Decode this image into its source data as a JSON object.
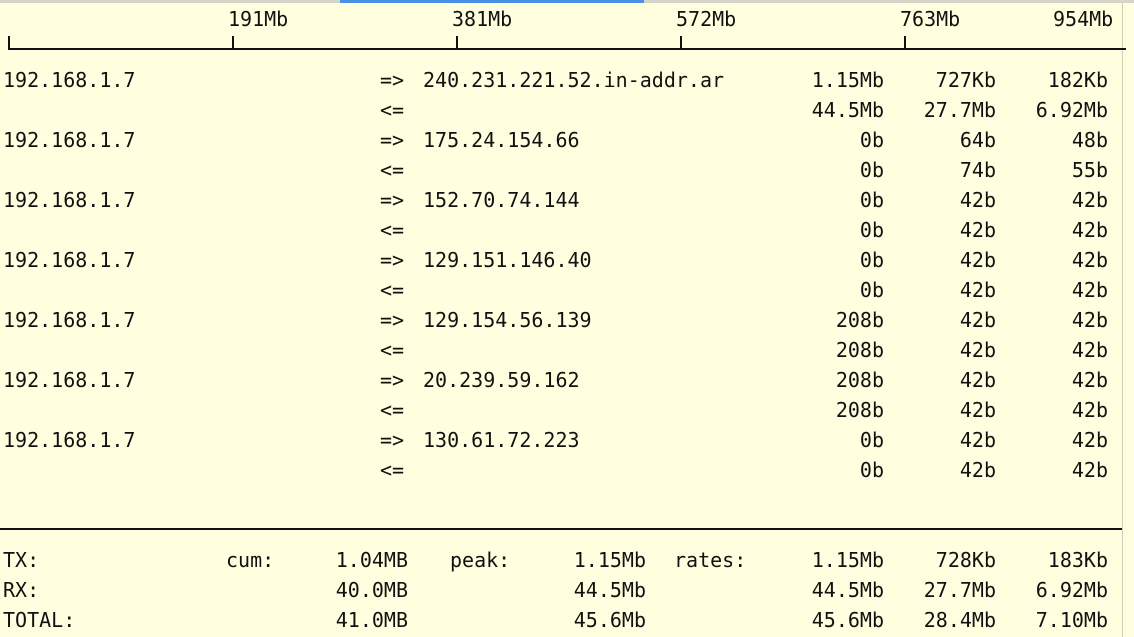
{
  "scale": {
    "labels": [
      "191Mb",
      "381Mb",
      "572Mb",
      "763Mb",
      "954Mb"
    ]
  },
  "connections": [
    {
      "source": "192.168.1.7",
      "dest": "240.231.221.52.in-addr.ar",
      "tx": {
        "dir": "=>",
        "r2": "1.15Mb",
        "r10": "727Kb",
        "r40": "182Kb"
      },
      "rx": {
        "dir": "<=",
        "r2": "44.5Mb",
        "r10": "27.7Mb",
        "r40": "6.92Mb"
      }
    },
    {
      "source": "192.168.1.7",
      "dest": "175.24.154.66",
      "tx": {
        "dir": "=>",
        "r2": "0b",
        "r10": "64b",
        "r40": "48b"
      },
      "rx": {
        "dir": "<=",
        "r2": "0b",
        "r10": "74b",
        "r40": "55b"
      }
    },
    {
      "source": "192.168.1.7",
      "dest": "152.70.74.144",
      "tx": {
        "dir": "=>",
        "r2": "0b",
        "r10": "42b",
        "r40": "42b"
      },
      "rx": {
        "dir": "<=",
        "r2": "0b",
        "r10": "42b",
        "r40": "42b"
      }
    },
    {
      "source": "192.168.1.7",
      "dest": "129.151.146.40",
      "tx": {
        "dir": "=>",
        "r2": "0b",
        "r10": "42b",
        "r40": "42b"
      },
      "rx": {
        "dir": "<=",
        "r2": "0b",
        "r10": "42b",
        "r40": "42b"
      }
    },
    {
      "source": "192.168.1.7",
      "dest": "129.154.56.139",
      "tx": {
        "dir": "=>",
        "r2": "208b",
        "r10": "42b",
        "r40": "42b"
      },
      "rx": {
        "dir": "<=",
        "r2": "208b",
        "r10": "42b",
        "r40": "42b"
      }
    },
    {
      "source": "192.168.1.7",
      "dest": "20.239.59.162",
      "tx": {
        "dir": "=>",
        "r2": "208b",
        "r10": "42b",
        "r40": "42b"
      },
      "rx": {
        "dir": "<=",
        "r2": "208b",
        "r10": "42b",
        "r40": "42b"
      }
    },
    {
      "source": "192.168.1.7",
      "dest": "130.61.72.223",
      "tx": {
        "dir": "=>",
        "r2": "0b",
        "r10": "42b",
        "r40": "42b"
      },
      "rx": {
        "dir": "<=",
        "r2": "0b",
        "r10": "42b",
        "r40": "42b"
      }
    }
  ],
  "totals": {
    "labels": {
      "cum": "cum:",
      "peak": "peak:",
      "rates": "rates:"
    },
    "rows": [
      {
        "label": "TX:",
        "cum": "1.04MB",
        "peak": "1.15Mb",
        "r2": "1.15Mb",
        "r10": "728Kb",
        "r40": "183Kb"
      },
      {
        "label": "RX:",
        "cum": "40.0MB",
        "peak": "44.5Mb",
        "r2": "44.5Mb",
        "r10": "27.7Mb",
        "r40": "6.92Mb"
      },
      {
        "label": "TOTAL:",
        "cum": "41.0MB",
        "peak": "45.6Mb",
        "r2": "45.6Mb",
        "r10": "28.4Mb",
        "r40": "7.10Mb"
      }
    ]
  },
  "colors": {
    "background": "#ffffdf",
    "text": "#111111",
    "active_tab_accent": "#4a90e2"
  }
}
